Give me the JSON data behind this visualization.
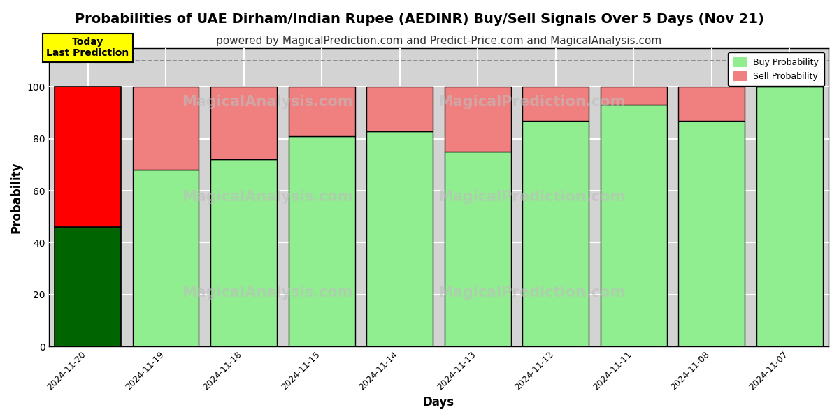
{
  "title": "Probabilities of UAE Dirham/Indian Rupee (AEDINR) Buy/Sell Signals Over 5 Days (Nov 21)",
  "subtitle": "powered by MagicalPrediction.com and Predict-Price.com and MagicalAnalysis.com",
  "xlabel": "Days",
  "ylabel": "Probability",
  "dates": [
    "2024-11-20",
    "2024-11-19",
    "2024-11-18",
    "2024-11-15",
    "2024-11-14",
    "2024-11-13",
    "2024-11-12",
    "2024-11-11",
    "2024-11-08",
    "2024-11-07"
  ],
  "buy_values": [
    46,
    68,
    72,
    81,
    83,
    75,
    87,
    93,
    87,
    100
  ],
  "sell_values": [
    54,
    32,
    28,
    19,
    17,
    25,
    13,
    7,
    13,
    0
  ],
  "today_bar_buy_color": "#006400",
  "today_bar_sell_color": "#FF0000",
  "normal_bar_buy_color": "#90EE90",
  "normal_bar_sell_color": "#F08080",
  "bar_edge_color": "#000000",
  "today_annotation_text": "Today\nLast Prediction",
  "today_annotation_bg": "#FFFF00",
  "today_annotation_border": "#000000",
  "dashed_line_y": 110,
  "dashed_line_color": "#808080",
  "ylim": [
    0,
    115
  ],
  "yticks": [
    0,
    20,
    40,
    60,
    80,
    100
  ],
  "grid_color": "#FFFFFF",
  "plot_bg_color": "#D3D3D3",
  "fig_bg_color": "#FFFFFF",
  "title_fontsize": 14,
  "subtitle_fontsize": 11,
  "legend_buy_label": "Buy Probability",
  "legend_sell_label": "Sell Probability",
  "bar_width": 0.85,
  "watermark_color": "#BEBEBE"
}
